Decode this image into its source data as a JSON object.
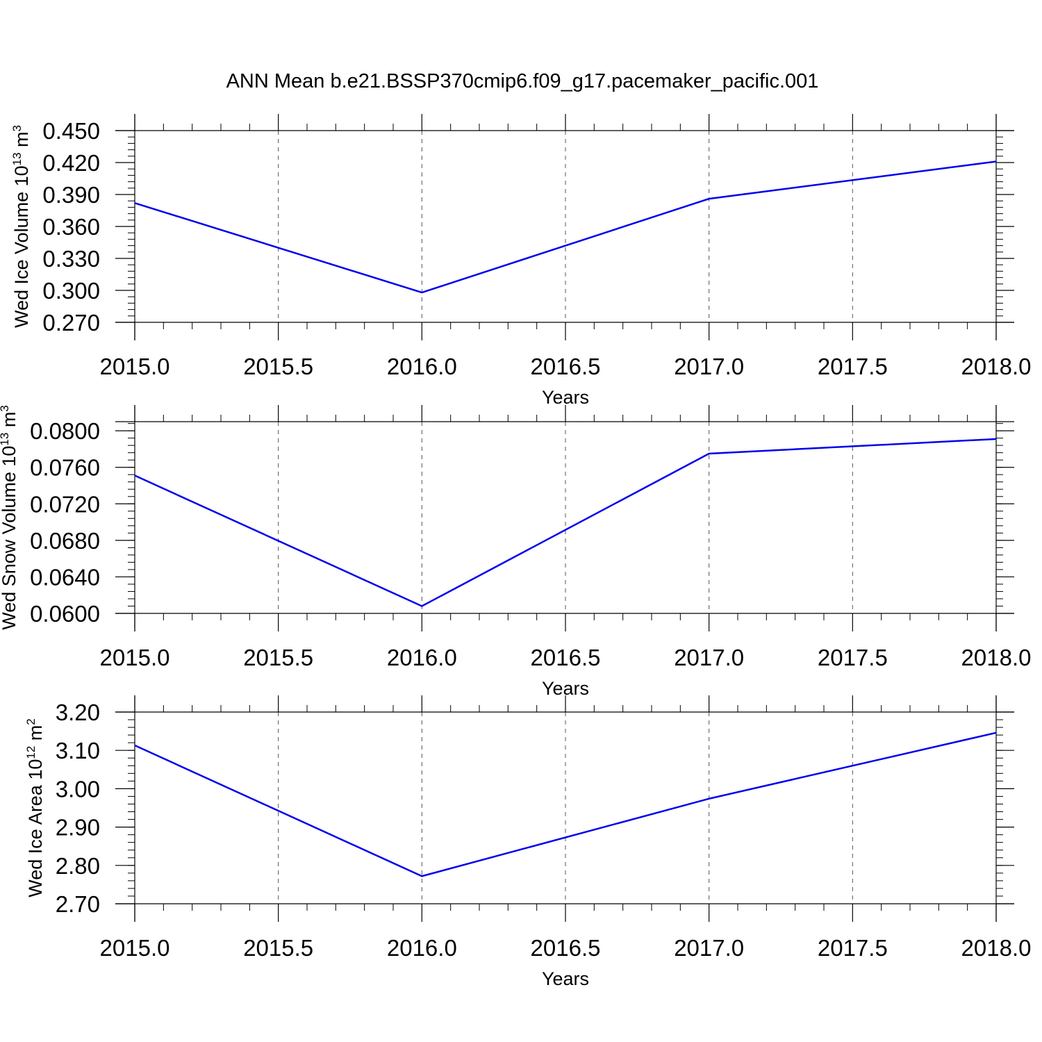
{
  "title": "ANN Mean b.e21.BSSP370cmip6.f09_g17.pacemaker_pacific.001",
  "colors": {
    "line": "#0000ee",
    "axis": "#000000",
    "grid": "#555555"
  },
  "chart_data": [
    {
      "type": "line",
      "ylabel": {
        "text": "Wed Ice Volume 10",
        "exponent": "13",
        "unit": " m",
        "unit_exponent": "3"
      },
      "xlabel": "Years",
      "x": [
        2015,
        2016,
        2017,
        2018
      ],
      "series": [
        {
          "values": [
            0.382,
            0.298,
            0.386,
            0.421
          ]
        }
      ],
      "xlim": [
        2015,
        2018
      ],
      "ylim": [
        0.27,
        0.45
      ],
      "xticks": [
        "2015.0",
        "2015.5",
        "2016.0",
        "2016.5",
        "2017.0",
        "2017.5",
        "2018.0"
      ],
      "yticks": [
        "0.270",
        "0.300",
        "0.330",
        "0.360",
        "0.390",
        "0.420",
        "0.450"
      ],
      "grid": "vertical dashed"
    },
    {
      "type": "line",
      "ylabel": {
        "text": "Wed Snow Volume 10",
        "exponent": "13",
        "unit": " m",
        "unit_exponent": "3"
      },
      "xlabel": "Years",
      "x": [
        2015,
        2016,
        2017,
        2018
      ],
      "series": [
        {
          "values": [
            0.0751,
            0.0608,
            0.0775,
            0.0791
          ]
        }
      ],
      "xlim": [
        2015,
        2018
      ],
      "ylim": [
        0.06,
        0.081
      ],
      "xticks": [
        "2015.0",
        "2015.5",
        "2016.0",
        "2016.5",
        "2017.0",
        "2017.5",
        "2018.0"
      ],
      "yticks": [
        "0.0600",
        "0.0640",
        "0.0680",
        "0.0720",
        "0.0760",
        "0.0800"
      ],
      "grid": "vertical dashed"
    },
    {
      "type": "line",
      "ylabel": {
        "text": "Wed Ice Area 10",
        "exponent": "12",
        "unit": " m",
        "unit_exponent": "2"
      },
      "xlabel": "Years",
      "x": [
        2015,
        2016,
        2017,
        2018
      ],
      "series": [
        {
          "values": [
            3.113,
            2.772,
            2.974,
            3.146
          ]
        }
      ],
      "xlim": [
        2015,
        2018
      ],
      "ylim": [
        2.7,
        3.2
      ],
      "xticks": [
        "2015.0",
        "2015.5",
        "2016.0",
        "2016.5",
        "2017.0",
        "2017.5",
        "2018.0"
      ],
      "yticks": [
        "2.70",
        "2.80",
        "2.90",
        "3.00",
        "3.10",
        "3.20"
      ],
      "grid": "vertical dashed"
    }
  ]
}
